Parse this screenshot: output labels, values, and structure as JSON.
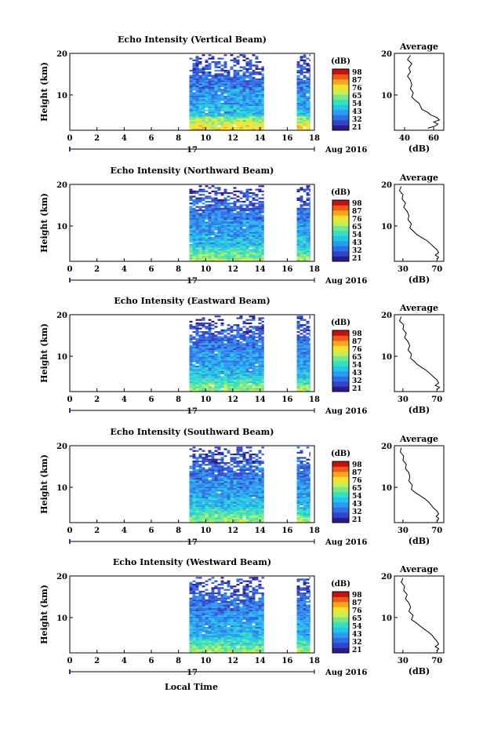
{
  "figure": {
    "xlabel": "Local Time",
    "date_label": "Aug 2016",
    "day_label": "17"
  },
  "chart_data": [
    {
      "type": "heatmap",
      "title": "Echo Intensity (Vertical Beam)",
      "xlabel": "",
      "ylabel": "Height (km)",
      "xlim": [
        0,
        18
      ],
      "ylim": [
        1.5,
        20
      ],
      "x_ticks": [
        "0",
        "2",
        "4",
        "6",
        "8",
        "10",
        "12",
        "14",
        "16",
        "18"
      ],
      "y_ticks": [
        "10",
        "20"
      ],
      "data_segments": [
        [
          8.8,
          14.3
        ],
        [
          16.7,
          17.7
        ]
      ],
      "colorbar": {
        "label": "(dB)",
        "ticks": [
          "98",
          "87",
          "76",
          "65",
          "54",
          "43",
          "32",
          "21"
        ]
      },
      "profile": {
        "title": "Average",
        "xlabel": "(dB)",
        "xlim": [
          33,
          67
        ],
        "x_ticks": [
          "40",
          "60"
        ],
        "y_ticks": [
          "10",
          "20"
        ],
        "points": [
          [
            44,
            19.5
          ],
          [
            42,
            18.5
          ],
          [
            45,
            17.5
          ],
          [
            43,
            16.5
          ],
          [
            44,
            15.5
          ],
          [
            42,
            14.5
          ],
          [
            44,
            13.5
          ],
          [
            45,
            12.5
          ],
          [
            44,
            11.5
          ],
          [
            46,
            10.5
          ],
          [
            45,
            9.5
          ],
          [
            47,
            8.8
          ],
          [
            50,
            8.0
          ],
          [
            51,
            7.2
          ],
          [
            52,
            6.5
          ],
          [
            56,
            5.8
          ],
          [
            58,
            5.2
          ],
          [
            62,
            4.6
          ],
          [
            64,
            4.0
          ],
          [
            60,
            3.5
          ],
          [
            63,
            3.0
          ],
          [
            61,
            2.5
          ],
          [
            56,
            2.0
          ]
        ]
      }
    },
    {
      "type": "heatmap",
      "title": "Echo Intensity (Northward Beam)",
      "xlabel": "",
      "ylabel": "Height (km)",
      "xlim": [
        0,
        18
      ],
      "ylim": [
        1.5,
        20
      ],
      "x_ticks": [
        "0",
        "2",
        "4",
        "6",
        "8",
        "10",
        "12",
        "14",
        "16",
        "18"
      ],
      "y_ticks": [
        "10",
        "20"
      ],
      "data_segments": [
        [
          8.8,
          14.3
        ],
        [
          16.7,
          17.7
        ]
      ],
      "colorbar": {
        "label": "(dB)",
        "ticks": [
          "98",
          "87",
          "76",
          "65",
          "54",
          "43",
          "32",
          "21"
        ]
      },
      "profile": {
        "title": "Average",
        "xlabel": "(dB)",
        "xlim": [
          20,
          78
        ],
        "x_ticks": [
          "30",
          "70"
        ],
        "y_ticks": [
          "10",
          "20"
        ],
        "points": [
          [
            28,
            19.5
          ],
          [
            26,
            18.5
          ],
          [
            30,
            17.5
          ],
          [
            29,
            16.5
          ],
          [
            33,
            15.5
          ],
          [
            31,
            14.5
          ],
          [
            35,
            13.5
          ],
          [
            37,
            12.5
          ],
          [
            36,
            11.5
          ],
          [
            40,
            10.5
          ],
          [
            38,
            9.5
          ],
          [
            42,
            8.8
          ],
          [
            46,
            8.0
          ],
          [
            52,
            7.2
          ],
          [
            58,
            6.5
          ],
          [
            62,
            5.8
          ],
          [
            66,
            5.0
          ],
          [
            70,
            4.3
          ],
          [
            72,
            3.6
          ],
          [
            68,
            3.0
          ],
          [
            72,
            2.5
          ],
          [
            70,
            2.0
          ]
        ]
      }
    },
    {
      "type": "heatmap",
      "title": "Echo Intensity (Eastward Beam)",
      "xlabel": "",
      "ylabel": "Height (km)",
      "xlim": [
        0,
        18
      ],
      "ylim": [
        1.5,
        20
      ],
      "x_ticks": [
        "0",
        "2",
        "4",
        "6",
        "8",
        "10",
        "12",
        "14",
        "16",
        "18"
      ],
      "y_ticks": [
        "10",
        "20"
      ],
      "data_segments": [
        [
          8.8,
          14.3
        ],
        [
          16.7,
          17.7
        ]
      ],
      "colorbar": {
        "label": "(dB)",
        "ticks": [
          "98",
          "87",
          "76",
          "65",
          "54",
          "43",
          "32",
          "21"
        ]
      },
      "profile": {
        "title": "Average",
        "xlabel": "(dB)",
        "xlim": [
          20,
          78
        ],
        "x_ticks": [
          "30",
          "70"
        ],
        "y_ticks": [
          "10",
          "20"
        ],
        "points": [
          [
            28,
            19.5
          ],
          [
            26,
            18.5
          ],
          [
            31,
            17.5
          ],
          [
            30,
            16.5
          ],
          [
            34,
            15.5
          ],
          [
            32,
            14.5
          ],
          [
            36,
            13.5
          ],
          [
            38,
            12.5
          ],
          [
            36,
            11.5
          ],
          [
            40,
            10.5
          ],
          [
            39,
            9.5
          ],
          [
            43,
            8.8
          ],
          [
            47,
            8.0
          ],
          [
            53,
            7.2
          ],
          [
            58,
            6.5
          ],
          [
            62,
            5.8
          ],
          [
            66,
            5.0
          ],
          [
            70,
            4.3
          ],
          [
            72,
            3.6
          ],
          [
            68,
            3.0
          ],
          [
            73,
            2.5
          ],
          [
            70,
            2.0
          ]
        ]
      }
    },
    {
      "type": "heatmap",
      "title": "Echo Intensity (Southward Beam)",
      "xlabel": "",
      "ylabel": "Height (km)",
      "xlim": [
        0,
        18
      ],
      "ylim": [
        1.5,
        20
      ],
      "x_ticks": [
        "0",
        "2",
        "4",
        "6",
        "8",
        "10",
        "12",
        "14",
        "16",
        "18"
      ],
      "y_ticks": [
        "10",
        "20"
      ],
      "data_segments": [
        [
          8.8,
          14.3
        ],
        [
          16.7,
          17.7
        ]
      ],
      "colorbar": {
        "label": "(dB)",
        "ticks": [
          "98",
          "87",
          "76",
          "65",
          "54",
          "43",
          "32",
          "21"
        ]
      },
      "profile": {
        "title": "Average",
        "xlabel": "(dB)",
        "xlim": [
          20,
          78
        ],
        "x_ticks": [
          "30",
          "70"
        ],
        "y_ticks": [
          "10",
          "20"
        ],
        "points": [
          [
            28,
            19.5
          ],
          [
            27,
            18.5
          ],
          [
            31,
            17.5
          ],
          [
            30,
            16.5
          ],
          [
            34,
            15.5
          ],
          [
            33,
            14.5
          ],
          [
            37,
            13.5
          ],
          [
            38,
            12.5
          ],
          [
            37,
            11.5
          ],
          [
            41,
            10.5
          ],
          [
            40,
            9.5
          ],
          [
            44,
            8.8
          ],
          [
            50,
            8.0
          ],
          [
            56,
            7.2
          ],
          [
            60,
            6.5
          ],
          [
            63,
            5.8
          ],
          [
            66,
            5.0
          ],
          [
            70,
            4.3
          ],
          [
            72,
            3.6
          ],
          [
            69,
            3.0
          ],
          [
            72,
            2.5
          ],
          [
            71,
            2.0
          ]
        ]
      }
    },
    {
      "type": "heatmap",
      "title": "Echo Intensity (Westward Beam)",
      "xlabel": "Local Time",
      "ylabel": "Height (km)",
      "xlim": [
        0,
        18
      ],
      "ylim": [
        1.5,
        20
      ],
      "x_ticks": [
        "0",
        "2",
        "4",
        "6",
        "8",
        "10",
        "12",
        "14",
        "16",
        "18"
      ],
      "y_ticks": [
        "10",
        "20"
      ],
      "data_segments": [
        [
          8.8,
          14.3
        ],
        [
          16.7,
          17.7
        ]
      ],
      "colorbar": {
        "label": "(dB)",
        "ticks": [
          "98",
          "87",
          "76",
          "65",
          "54",
          "43",
          "32",
          "21"
        ]
      },
      "profile": {
        "title": "Average",
        "xlabel": "(dB)",
        "xlim": [
          20,
          78
        ],
        "x_ticks": [
          "30",
          "70"
        ],
        "y_ticks": [
          "10",
          "20"
        ],
        "points": [
          [
            30,
            19.5
          ],
          [
            28,
            18.5
          ],
          [
            32,
            17.5
          ],
          [
            31,
            16.5
          ],
          [
            35,
            15.5
          ],
          [
            33,
            14.5
          ],
          [
            37,
            13.5
          ],
          [
            39,
            12.5
          ],
          [
            37,
            11.5
          ],
          [
            42,
            10.5
          ],
          [
            40,
            9.5
          ],
          [
            45,
            8.8
          ],
          [
            50,
            8.0
          ],
          [
            55,
            7.2
          ],
          [
            60,
            6.5
          ],
          [
            64,
            5.8
          ],
          [
            67,
            5.0
          ],
          [
            70,
            4.3
          ],
          [
            72,
            3.6
          ],
          [
            68,
            3.0
          ],
          [
            72,
            2.5
          ],
          [
            70,
            2.0
          ]
        ]
      }
    }
  ]
}
